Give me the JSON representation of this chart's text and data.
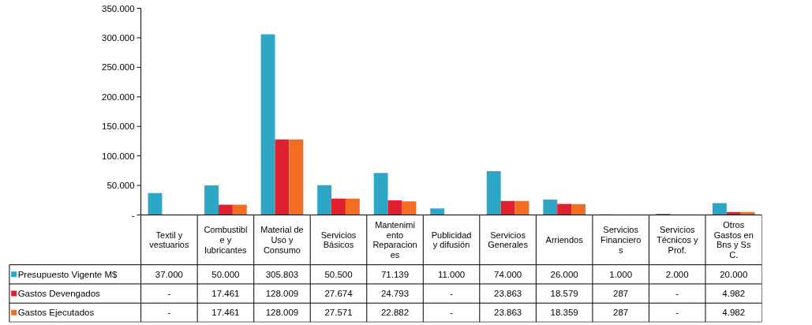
{
  "chart_data": {
    "type": "bar",
    "categories": [
      "Textil y\nvestuarios",
      "Combustibl\ne y\nlubricantes",
      "Material de\nUso y\nConsumo",
      "Servicios\nBásicos",
      "Mantenimi\nento\nReparacion\nes",
      "Publicidad\ny difusión",
      "Servicios\nGenerales",
      "Arriendos",
      "Servicios\nFinanciero\ns",
      "Servicios\nTécnicos y\nProf.",
      "Otros\nGastos en\nBns y Ss\nC."
    ],
    "series": [
      {
        "name": "Presupuesto Vigente M$",
        "color": "#2ea7c6",
        "values": [
          37000,
          50000,
          305803,
          50500,
          71139,
          11000,
          74000,
          26000,
          1000,
          2000,
          20000
        ],
        "value_labels": [
          "37.000",
          "50.000",
          "305.803",
          "50.500",
          "71.139",
          "11.000",
          "74.000",
          "26.000",
          "1.000",
          "2.000",
          "20.000"
        ]
      },
      {
        "name": "Gastos Devengados",
        "color": "#e0202e",
        "values": [
          null,
          17461,
          128009,
          27674,
          24793,
          null,
          23863,
          18579,
          287,
          null,
          4982
        ],
        "value_labels": [
          "-",
          "17.461",
          "128.009",
          "27.674",
          "24.793",
          "-",
          "23.863",
          "18.579",
          "287",
          "-",
          "4.982"
        ]
      },
      {
        "name": "Gastos Ejecutados",
        "color": "#f26d21",
        "values": [
          null,
          17461,
          128009,
          27571,
          22882,
          null,
          23863,
          18359,
          287,
          null,
          4982
        ],
        "value_labels": [
          "-",
          "17.461",
          "128.009",
          "27.571",
          "22.882",
          "-",
          "23.863",
          "18.359",
          "287",
          "-",
          "4.982"
        ]
      }
    ],
    "ylim": [
      0,
      350000
    ],
    "yticks": [
      {
        "value": 0,
        "label": "-"
      },
      {
        "value": 50000,
        "label": "50.000"
      },
      {
        "value": 100000,
        "label": "100.000"
      },
      {
        "value": 150000,
        "label": "150.000"
      },
      {
        "value": 200000,
        "label": "200.000"
      },
      {
        "value": 250000,
        "label": "250.000"
      },
      {
        "value": 300000,
        "label": "300.000"
      },
      {
        "value": 350000,
        "label": "350.000"
      }
    ],
    "legend": "bottom left"
  }
}
